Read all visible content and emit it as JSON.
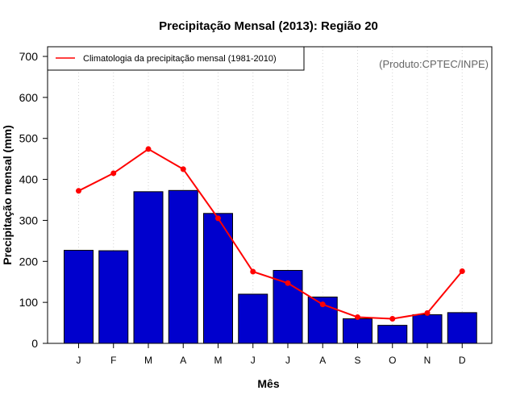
{
  "chart_data": {
    "type": "bar",
    "title": "Precipitação Mensal (2013): Região 20",
    "xlabel": "Mês",
    "ylabel": "Precipitação mensal (mm)",
    "categories": [
      "J",
      "F",
      "M",
      "A",
      "M",
      "J",
      "J",
      "A",
      "S",
      "O",
      "N",
      "D"
    ],
    "ylim": [
      0,
      700
    ],
    "yticks": [
      "0",
      "100",
      "200",
      "300",
      "400",
      "500",
      "600",
      "700"
    ],
    "series": [
      {
        "name": "Precipitação mensal (2013)",
        "kind": "bar",
        "color": "#0000cd",
        "values": [
          227,
          226,
          370,
          373,
          317,
          120,
          178,
          113,
          60,
          44,
          70,
          75
        ]
      },
      {
        "name": "Climatologia da precipitação mensal (1981-2010)",
        "kind": "line",
        "color": "#ff0000",
        "values": [
          372,
          415,
          474,
          425,
          305,
          175,
          147,
          95,
          64,
          60,
          74,
          176
        ]
      }
    ],
    "legend": {
      "position": "top-left",
      "label": "Climatologia da precipitação mensal (1981-2010)"
    },
    "annotation": "(Produto:CPTEC/INPE)",
    "grid": "vertical dotted"
  }
}
